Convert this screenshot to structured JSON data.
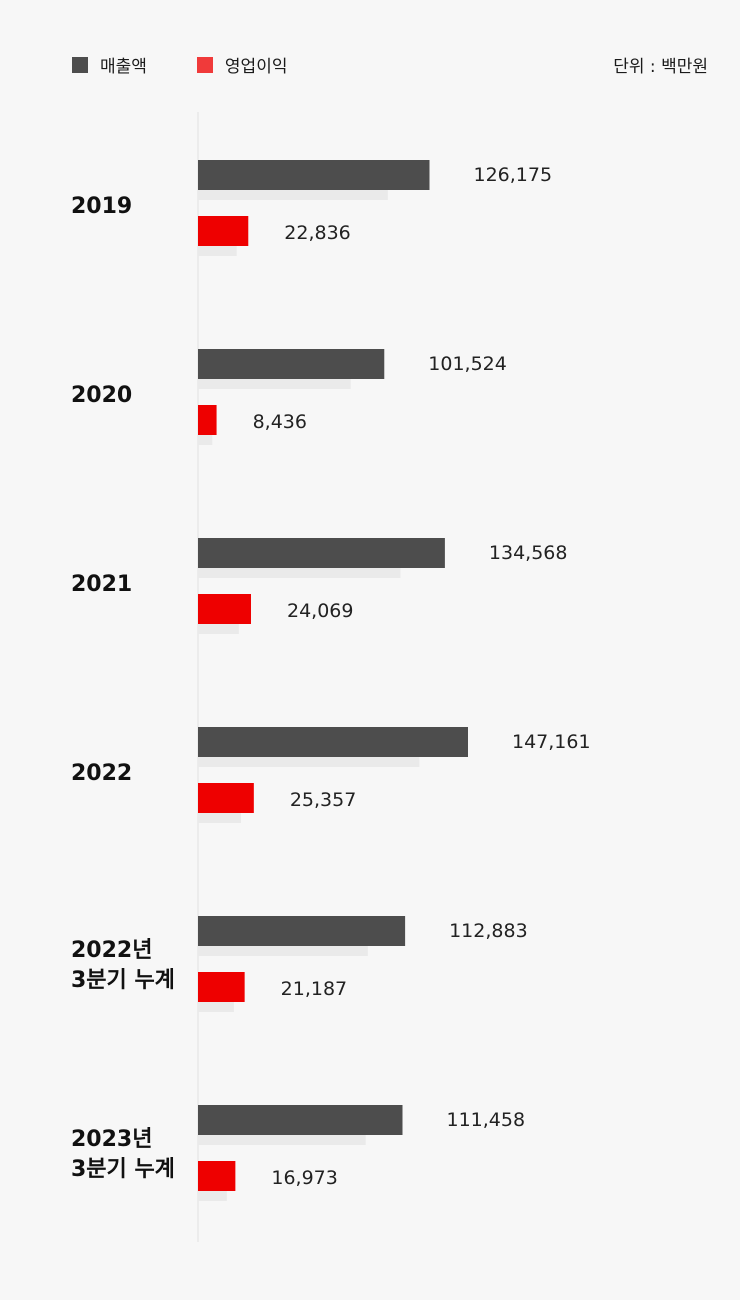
{
  "legend": {
    "revenue_label": "매출액",
    "profit_label": "영업이익"
  },
  "unit": "단위 : 백만원",
  "colors": {
    "revenue": "#4d4d4d",
    "profit": "#ee0000",
    "profit_legend": "#f03a3a",
    "ghost": "#eaeaea"
  },
  "chart_data": {
    "type": "bar",
    "orientation": "horizontal",
    "categories": [
      [
        "2019"
      ],
      [
        "2020"
      ],
      [
        "2021"
      ],
      [
        "2022"
      ],
      [
        "2022년",
        "3분기 누계"
      ],
      [
        "2023년",
        "3분기 누계"
      ]
    ],
    "series": [
      {
        "name": "매출액",
        "values": [
          126175,
          101524,
          134568,
          147161,
          112883,
          111458
        ],
        "labels": [
          "126,175",
          "101,524",
          "134,568",
          "147,161",
          "112,883",
          "111,458"
        ]
      },
      {
        "name": "영업이익",
        "values": [
          22836,
          8436,
          24069,
          25357,
          21187,
          16973
        ],
        "labels": [
          "22,836",
          "8,436",
          "24,069",
          "25,357",
          "21,187",
          "16,973"
        ]
      }
    ],
    "title": "",
    "xlabel": "",
    "ylabel": "",
    "grid": false,
    "legend_position": "top-left"
  }
}
